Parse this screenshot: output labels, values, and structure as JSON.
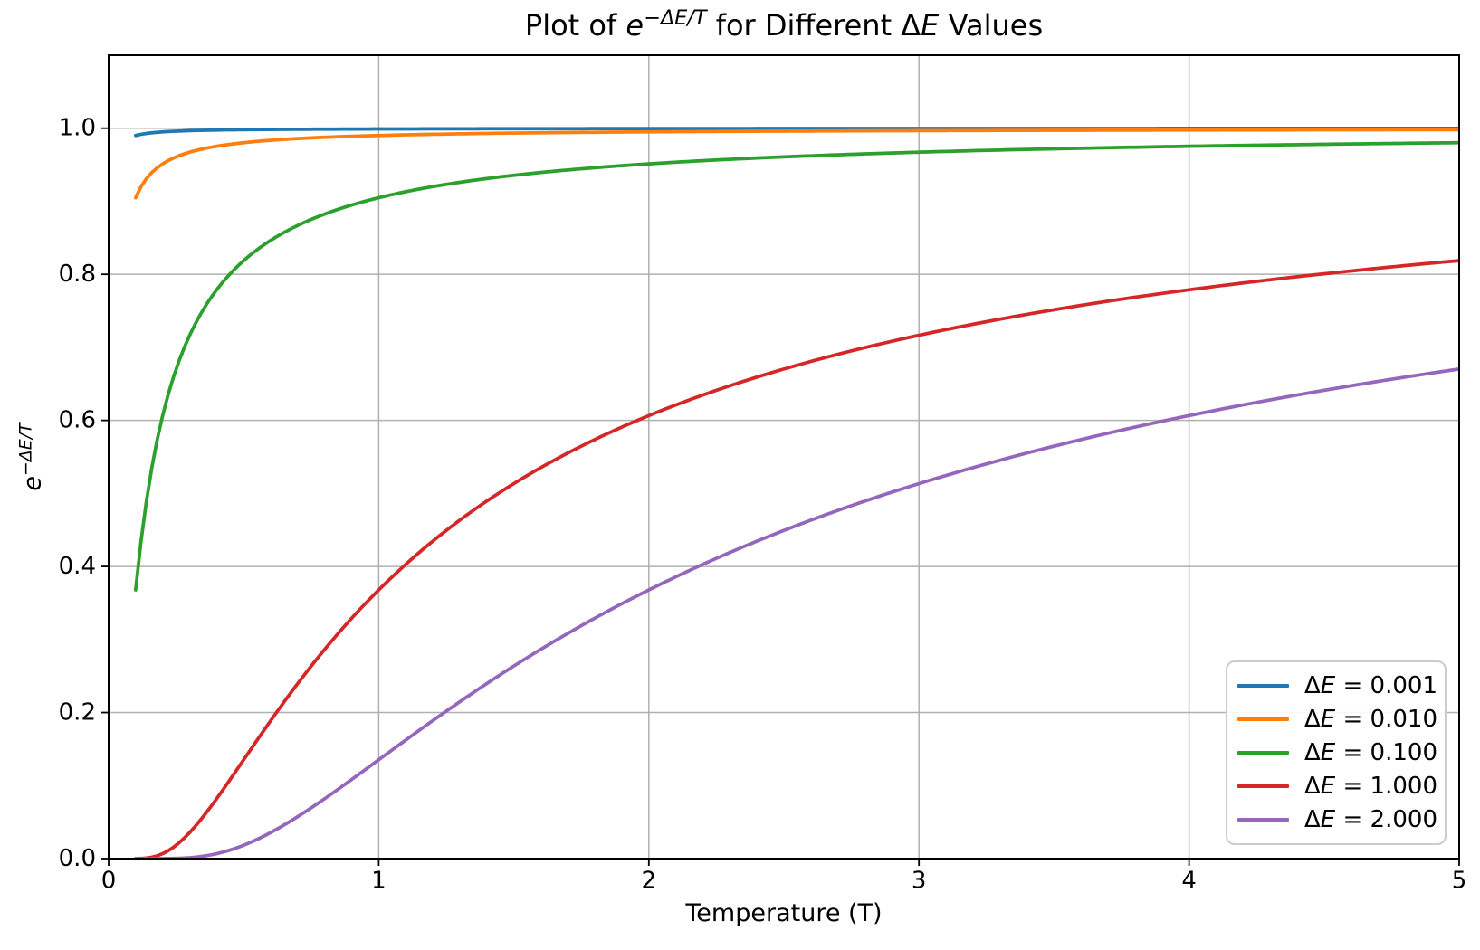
{
  "title": {
    "part1": "Plot of ",
    "exp_base": "e",
    "exp_sup": "−ΔE/T",
    "part2": " for Different ",
    "delta": "Δ",
    "e_sym": "E",
    "part3": " Values"
  },
  "axes": {
    "xlabel": "Temperature (T)",
    "ylabel_base": "e",
    "ylabel_sup": "−ΔE/T"
  },
  "legend": {
    "delta_symbol": "Δ",
    "e_symbol": "E",
    "equals": " = "
  },
  "chart_data": {
    "type": "line",
    "title": "Plot of e^(−ΔE/T) for Different ΔE Values",
    "xlabel": "Temperature (T)",
    "ylabel": "e^(−ΔE/T)",
    "formula": "y = exp(−ΔE/T)",
    "xlim": [
      0,
      5
    ],
    "ylim": [
      0,
      1.1
    ],
    "x_start": 0.1,
    "x_end": 5.0,
    "x_ticks": [
      0,
      1,
      2,
      3,
      4,
      5
    ],
    "x_tick_labels": [
      "0",
      "1",
      "2",
      "3",
      "4",
      "5"
    ],
    "y_ticks": [
      0.0,
      0.2,
      0.4,
      0.6,
      0.8,
      1.0
    ],
    "y_tick_labels": [
      "0.0",
      "0.2",
      "0.4",
      "0.6",
      "0.8",
      "1.0"
    ],
    "grid": true,
    "grid_color": "#b0b0b0",
    "axis_color": "#000000",
    "legend_position": "lower right",
    "sample_x": [
      0.1,
      0.5,
      1.0,
      2.0,
      3.0,
      4.0,
      5.0
    ],
    "series": [
      {
        "label": "ΔE = 0.001",
        "value_str": "0.001",
        "delta_e": 0.001,
        "color": "#1f77b4",
        "sample_y": [
          0.99,
          0.998,
          0.999,
          1.0,
          1.0,
          1.0,
          1.0
        ]
      },
      {
        "label": "ΔE = 0.010",
        "value_str": "0.010",
        "delta_e": 0.01,
        "color": "#ff7f0e",
        "sample_y": [
          0.905,
          0.98,
          0.99,
          0.995,
          0.997,
          0.998,
          0.998
        ]
      },
      {
        "label": "ΔE = 0.100",
        "value_str": "0.100",
        "delta_e": 0.1,
        "color": "#2ca02c",
        "sample_y": [
          0.368,
          0.819,
          0.905,
          0.951,
          0.967,
          0.975,
          0.98
        ]
      },
      {
        "label": "ΔE = 1.000",
        "value_str": "1.000",
        "delta_e": 1.0,
        "color": "#d62728",
        "sample_y": [
          0.0,
          0.135,
          0.368,
          0.607,
          0.717,
          0.779,
          0.819
        ]
      },
      {
        "label": "ΔE = 2.000",
        "value_str": "2.000",
        "delta_e": 2.0,
        "color": "#9467bd",
        "sample_y": [
          0.0,
          0.018,
          0.135,
          0.368,
          0.513,
          0.607,
          0.67
        ]
      }
    ]
  }
}
